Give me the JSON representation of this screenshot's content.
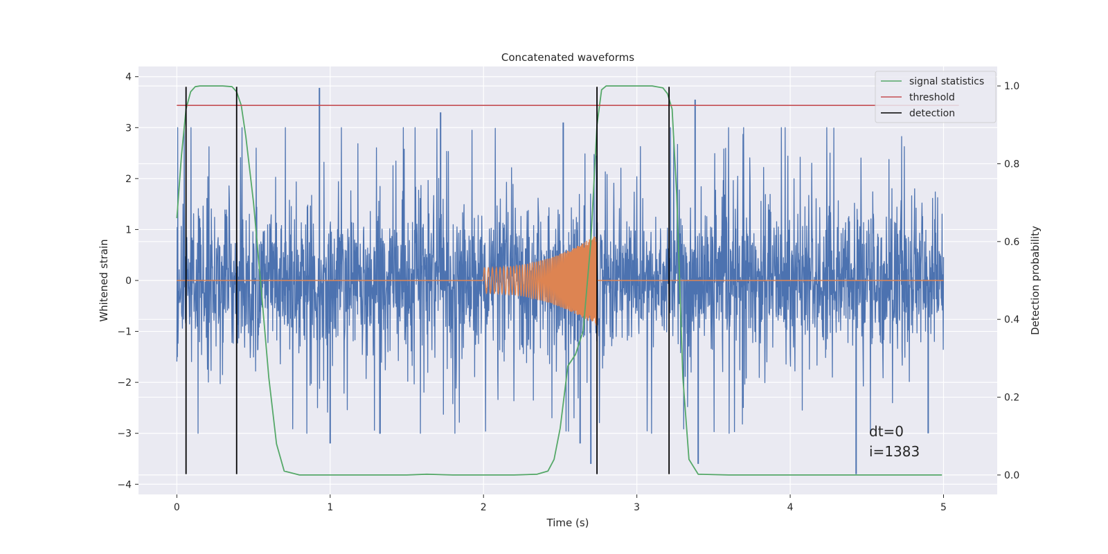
{
  "chart_data": {
    "type": "line",
    "title": "Concatenated waveforms",
    "xlabel": "Time (s)",
    "ylabel": "Whitened strain",
    "y2label": "Detection probability",
    "xlim": [
      -0.25,
      5.35
    ],
    "ylim": [
      -4.2,
      4.2
    ],
    "y2lim": [
      -0.05,
      1.05
    ],
    "xticks": [
      "0",
      "1",
      "2",
      "3",
      "4",
      "5"
    ],
    "yticks": [
      "−4",
      "−3",
      "−2",
      "−1",
      "0",
      "1",
      "2",
      "3",
      "4"
    ],
    "y2ticks": [
      "0.0",
      "0.2",
      "0.4",
      "0.6",
      "0.8",
      "1.0"
    ],
    "grid": true,
    "legend_position": "top-right",
    "colors": {
      "background": "#eaeaf2",
      "grid": "#ffffff",
      "strain": "#4c72b0",
      "template": "#dd8452",
      "statistics": "#55a868",
      "threshold": "#c44e52",
      "detection": "#000000"
    },
    "legend": [
      "signal statistics",
      "threshold",
      "detection"
    ],
    "threshold": {
      "value_probability": 0.95,
      "x_range": [
        0,
        5.1
      ]
    },
    "detection_times": [
      0.06,
      0.39,
      2.74,
      3.21
    ],
    "detection_y_range": [
      -3.8,
      3.8
    ],
    "signal_statistics": {
      "x": [
        0,
        0.03,
        0.06,
        0.09,
        0.12,
        0.15,
        0.2,
        0.3,
        0.36,
        0.39,
        0.42,
        0.45,
        0.5,
        0.55,
        0.6,
        0.65,
        0.7,
        0.8,
        1.0,
        1.5,
        1.63,
        1.8,
        2.0,
        2.2,
        2.35,
        2.42,
        2.46,
        2.5,
        2.55,
        2.6,
        2.65,
        2.7,
        2.74,
        2.77,
        2.8,
        2.85,
        2.9,
        3.0,
        3.1,
        3.17,
        3.2,
        3.23,
        3.26,
        3.3,
        3.34,
        3.4,
        3.6,
        4.0,
        4.5,
        4.99
      ],
      "y": [
        0.66,
        0.82,
        0.94,
        0.985,
        0.998,
        1.0,
        1.0,
        1.0,
        0.998,
        0.985,
        0.95,
        0.87,
        0.7,
        0.48,
        0.25,
        0.08,
        0.01,
        0.0,
        0.0,
        0.0,
        0.002,
        0.0,
        0.0,
        0.0,
        0.002,
        0.01,
        0.04,
        0.12,
        0.28,
        0.31,
        0.37,
        0.6,
        0.9,
        0.99,
        1.0,
        1.0,
        1.0,
        1.0,
        1.0,
        0.995,
        0.98,
        0.94,
        0.72,
        0.25,
        0.04,
        0.002,
        0.0,
        0.0,
        0.0,
        0.0
      ]
    },
    "whitened_strain": {
      "x_range": [
        0,
        5
      ],
      "envelope": 0.75,
      "typical_peak": 2.0,
      "spikes": [
        {
          "x": 0.93,
          "y": 3.78
        },
        {
          "x": 1.72,
          "y": 3.3
        },
        {
          "x": 3.38,
          "y": 3.55
        },
        {
          "x": 2.52,
          "y": 3.1
        },
        {
          "x": 1.0,
          "y": -3.2
        },
        {
          "x": 2.63,
          "y": -3.2
        },
        {
          "x": 3.4,
          "y": -3.6
        },
        {
          "x": 4.43,
          "y": -3.8
        },
        {
          "x": 2.7,
          "y": -3.6
        },
        {
          "x": 4.9,
          "y": -3.0
        }
      ]
    },
    "template_chirp": {
      "start": 2.0,
      "end": 2.74,
      "start_amplitude": 0.25,
      "end_amplitude": 0.9
    },
    "annotations": [
      "dt=0",
      "i=1383"
    ]
  }
}
